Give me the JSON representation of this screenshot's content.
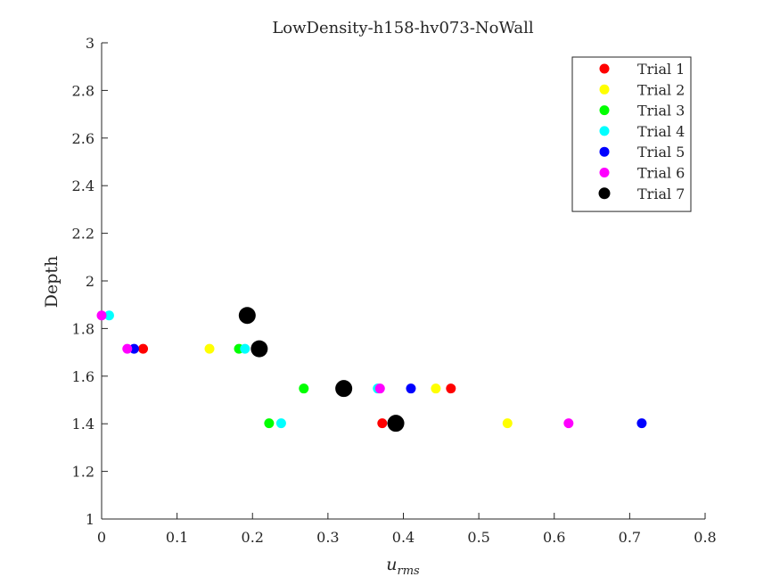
{
  "chart_data": {
    "type": "scatter",
    "title": "LowDensity-h158-hv073-NoWall",
    "xlabel": "u",
    "xlabel_sub": "rms",
    "ylabel": "Depth",
    "xlim": [
      0,
      0.8
    ],
    "ylim": [
      1,
      3
    ],
    "xticks": [
      "0",
      "0.1",
      "0.2",
      "0.3",
      "0.4",
      "0.5",
      "0.6",
      "0.7",
      "0.8"
    ],
    "yticks": [
      "1",
      "1.2",
      "1.4",
      "1.6",
      "1.8",
      "2",
      "2.2",
      "2.4",
      "2.6",
      "2.8",
      "3"
    ],
    "grid": false,
    "legend_position": "top-right",
    "series": [
      {
        "name": "Trial 1",
        "color": "#ff0000",
        "marker_size": "normal",
        "points": [
          [
            0.055,
            1.715
          ],
          [
            0.463,
            1.548
          ],
          [
            0.372,
            1.402
          ]
        ]
      },
      {
        "name": "Trial 2",
        "color": "#ffff00",
        "marker_size": "normal",
        "points": [
          [
            0.143,
            1.715
          ],
          [
            0.443,
            1.548
          ],
          [
            0.538,
            1.402
          ]
        ]
      },
      {
        "name": "Trial 3",
        "color": "#00ff00",
        "marker_size": "normal",
        "points": [
          [
            0.182,
            1.715
          ],
          [
            0.268,
            1.548
          ],
          [
            0.222,
            1.402
          ]
        ]
      },
      {
        "name": "Trial 4",
        "color": "#00ffff",
        "marker_size": "normal",
        "points": [
          [
            0.01,
            1.855
          ],
          [
            0.19,
            1.715
          ],
          [
            0.366,
            1.548
          ],
          [
            0.238,
            1.402
          ]
        ]
      },
      {
        "name": "Trial 5",
        "color": "#0000ff",
        "marker_size": "normal",
        "points": [
          [
            0.043,
            1.715
          ],
          [
            0.41,
            1.548
          ],
          [
            0.716,
            1.402
          ]
        ]
      },
      {
        "name": "Trial 6",
        "color": "#ff00ff",
        "marker_size": "normal",
        "points": [
          [
            0.0,
            1.855
          ],
          [
            0.034,
            1.715
          ],
          [
            0.369,
            1.548
          ],
          [
            0.619,
            1.402
          ]
        ]
      },
      {
        "name": "Trial 7",
        "color": "#000000",
        "marker_size": "large",
        "points": [
          [
            0.193,
            1.855
          ],
          [
            0.209,
            1.715
          ],
          [
            0.321,
            1.548
          ],
          [
            0.39,
            1.402
          ]
        ]
      }
    ]
  }
}
